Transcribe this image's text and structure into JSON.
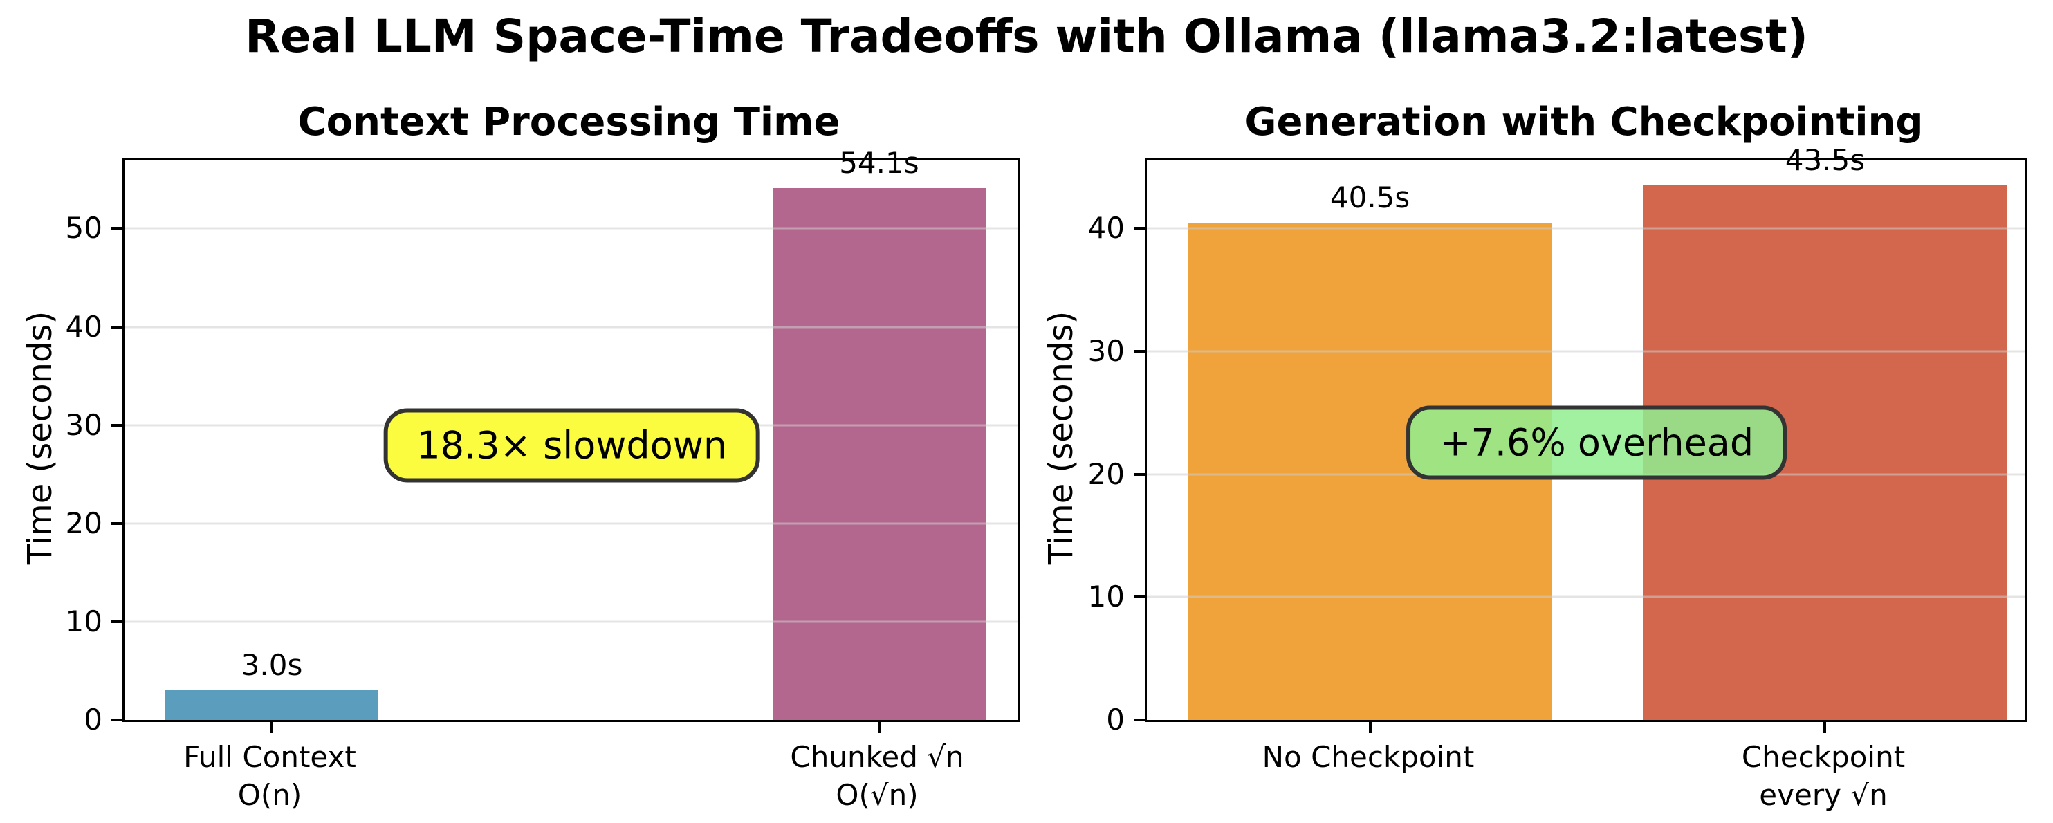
{
  "title": "Real LLM Space-Time Tradeoffs with Ollama (llama3.2:latest)",
  "chart_data": [
    {
      "type": "bar",
      "title": "Context Processing Time",
      "xlabel": "",
      "ylabel": "Time (seconds)",
      "categories": [
        "Full Context\nO(n)",
        "Chunked √n\nO(√n)"
      ],
      "values": [
        3.0,
        54.1
      ],
      "bar_labels": [
        "3.0s",
        "54.1s"
      ],
      "bar_colors": [
        "#5A9DBC",
        "#B4678E"
      ],
      "yticks": [
        0,
        10,
        20,
        30,
        40,
        50
      ],
      "ylim": [
        0,
        57
      ],
      "grid": true,
      "legend": "none",
      "annotation": {
        "text": "18.3× slowdown",
        "bg": "#FBFB40",
        "border": "#333333"
      }
    },
    {
      "type": "bar",
      "title": "Generation with Checkpointing",
      "xlabel": "",
      "ylabel": "Time (seconds)",
      "categories": [
        "No Checkpoint",
        "Checkpoint\nevery √n"
      ],
      "values": [
        40.5,
        43.5
      ],
      "bar_labels": [
        "40.5s",
        "43.5s"
      ],
      "bar_colors": [
        "#F0A23B",
        "#D2674E"
      ],
      "yticks": [
        0,
        10,
        20,
        30,
        40
      ],
      "ylim": [
        0,
        45.6
      ],
      "grid": true,
      "legend": "none",
      "annotation": {
        "text": "+7.6% overhead",
        "bg": "rgba(144,238,144,0.85)",
        "border": "#333333"
      }
    }
  ]
}
